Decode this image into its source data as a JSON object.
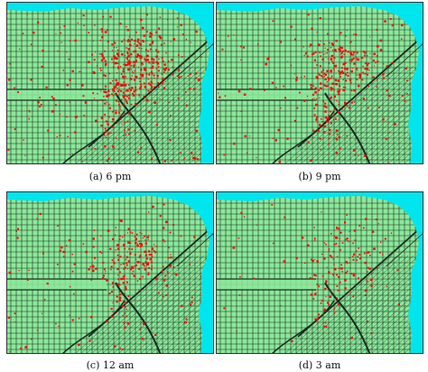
{
  "colors": {
    "water": "#00e5ee",
    "land": "#8ce89a",
    "streets": "#1a2a22",
    "points": "#ff0000"
  },
  "panels": [
    {
      "caption": "(a) 6 pm",
      "density": 1.0
    },
    {
      "caption": "(b) 9 pm",
      "density": 0.72
    },
    {
      "caption": "(c) 12 am",
      "density": 0.55
    },
    {
      "caption": "(d) 3 am",
      "density": 0.34
    }
  ]
}
